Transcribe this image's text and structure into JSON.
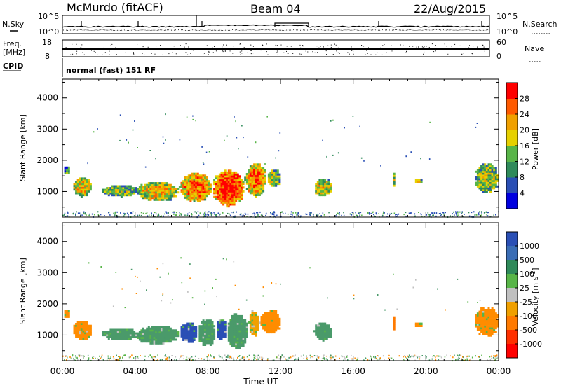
{
  "header": {
    "station": "McMurdo (fitACF)",
    "beam": "Beam 04",
    "date": "22/Aug/2015"
  },
  "status_panel": {
    "left_labels": [
      "N.Sky",
      "Freq.",
      "[MHz]",
      "CPID"
    ],
    "right_labels": [
      "N.Search",
      "Nave"
    ],
    "noise_ticks": [
      "10^5",
      "10^0"
    ],
    "freq_ticks": [
      "18",
      "8"
    ],
    "nave_ticks": [
      "60",
      "0"
    ],
    "cpid_text": "normal (fast) 151 RF"
  },
  "chart_data": [
    {
      "type": "heatmap",
      "name": "power",
      "ylabel": "Slant Range [km]",
      "xlabel": "",
      "x_range": [
        0,
        24
      ],
      "ylim": [
        180,
        4600
      ],
      "y_ticks": [
        "1000",
        "2000",
        "3000",
        "4000"
      ],
      "y_tick_values": [
        1000,
        2000,
        3000,
        4000
      ],
      "colorbar": {
        "label": "Power [dB]",
        "ticks": [
          "28",
          "24",
          "20",
          "16",
          "12",
          "8",
          "4"
        ],
        "tick_values": [
          28,
          24,
          20,
          16,
          12,
          8,
          4
        ],
        "range": [
          0,
          32
        ],
        "colors": [
          "#0000e0",
          "#2a4fb5",
          "#2f8a5a",
          "#58b548",
          "#e6d000",
          "#f0a000",
          "#ff5a00",
          "#ff0000"
        ]
      },
      "echo_regions": [
        {
          "t0": 0.0,
          "t1": 0.4,
          "r0": 1500,
          "r1": 1800,
          "level": 0.35
        },
        {
          "t0": 0.5,
          "t1": 1.6,
          "r0": 800,
          "r1": 1450,
          "level": 0.65
        },
        {
          "t0": 2.1,
          "t1": 4.2,
          "r0": 800,
          "r1": 1200,
          "level": 0.45
        },
        {
          "t0": 4.0,
          "t1": 6.4,
          "r0": 650,
          "r1": 1300,
          "level": 0.65
        },
        {
          "t0": 6.4,
          "t1": 8.2,
          "r0": 600,
          "r1": 1600,
          "level": 0.8
        },
        {
          "t0": 8.2,
          "t1": 10.0,
          "r0": 500,
          "r1": 1700,
          "level": 0.95
        },
        {
          "t0": 10.0,
          "t1": 11.2,
          "r0": 800,
          "r1": 1900,
          "level": 0.8
        },
        {
          "t0": 11.2,
          "t1": 12.0,
          "r0": 1100,
          "r1": 1700,
          "level": 0.5
        },
        {
          "t0": 13.8,
          "t1": 14.8,
          "r0": 800,
          "r1": 1400,
          "level": 0.6
        },
        {
          "t0": 18.1,
          "t1": 18.3,
          "r0": 1100,
          "r1": 1600,
          "level": 0.5
        },
        {
          "t0": 19.3,
          "t1": 19.8,
          "r0": 1200,
          "r1": 1400,
          "level": 0.55
        },
        {
          "t0": 22.6,
          "t1": 24.0,
          "r0": 900,
          "r1": 1900,
          "level": 0.5
        }
      ]
    },
    {
      "type": "heatmap",
      "name": "velocity",
      "ylabel": "Slant Range [km]",
      "xlabel": "Time UT",
      "x_range": [
        0,
        24
      ],
      "ylim": [
        180,
        4600
      ],
      "y_ticks": [
        "1000",
        "2000",
        "3000",
        "4000"
      ],
      "y_tick_values": [
        1000,
        2000,
        3000,
        4000
      ],
      "x_ticks": [
        "00:00",
        "04:00",
        "08:00",
        "12:00",
        "16:00",
        "20:00",
        "00:00"
      ],
      "x_tick_values": [
        0,
        4,
        8,
        12,
        16,
        20,
        24
      ],
      "colorbar": {
        "label": "Velocity [m s",
        "label_sup": "-1",
        "label_end": "]",
        "ticks": [
          "1000",
          "500",
          "100",
          "25",
          "-25",
          "-100",
          "-500",
          "-1000"
        ],
        "colors": [
          "#2a4fb5",
          "#3a6db5",
          "#2f8a5a",
          "#58b548",
          "#c0c0c0",
          "#f0a000",
          "#ff7a00",
          "#ff3000",
          "#ff0000"
        ]
      },
      "echo_regions": [
        {
          "t0": 0.0,
          "t1": 0.4,
          "r0": 1500,
          "r1": 1800,
          "color": "#ff8c00"
        },
        {
          "t0": 0.5,
          "t1": 1.6,
          "r0": 800,
          "r1": 1450,
          "color": "#ff8c00"
        },
        {
          "t0": 2.1,
          "t1": 4.2,
          "r0": 800,
          "r1": 1200,
          "color": "#4a9a6a"
        },
        {
          "t0": 4.0,
          "t1": 6.4,
          "r0": 650,
          "r1": 1300,
          "color": "#4a9a6a"
        },
        {
          "t0": 6.4,
          "t1": 7.4,
          "r0": 700,
          "r1": 1400,
          "color": "#2a4fb5"
        },
        {
          "t0": 7.4,
          "t1": 8.4,
          "r0": 600,
          "r1": 1500,
          "color": "#4a9a6a"
        },
        {
          "t0": 8.4,
          "t1": 9.0,
          "r0": 800,
          "r1": 1500,
          "color": "#2a4fb5"
        },
        {
          "t0": 9.0,
          "t1": 10.2,
          "r0": 500,
          "r1": 1700,
          "color": "#4a9a6a"
        },
        {
          "t0": 10.2,
          "t1": 10.8,
          "r0": 900,
          "r1": 1800,
          "color": "#f0a000"
        },
        {
          "t0": 10.8,
          "t1": 12.0,
          "r0": 1000,
          "r1": 1800,
          "color": "#ff8c00"
        },
        {
          "t0": 13.8,
          "t1": 14.8,
          "r0": 800,
          "r1": 1400,
          "color": "#4a9a6a"
        },
        {
          "t0": 18.1,
          "t1": 18.3,
          "r0": 1100,
          "r1": 1600,
          "color": "#ff7a00"
        },
        {
          "t0": 19.3,
          "t1": 19.8,
          "r0": 1200,
          "r1": 1400,
          "color": "#ff8c00"
        },
        {
          "t0": 22.6,
          "t1": 24.0,
          "r0": 900,
          "r1": 1900,
          "color": "#ff8c00"
        }
      ]
    }
  ]
}
